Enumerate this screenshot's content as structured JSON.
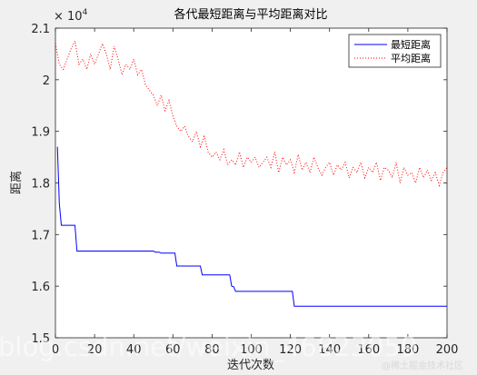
{
  "chart_data": {
    "type": "line",
    "title": "各代最短距离与平均距离对比",
    "xlabel": "迭代次数",
    "ylabel": "距离",
    "y_multiplier_label": "× 10",
    "y_multiplier_exp": "4",
    "xlim": [
      0,
      200
    ],
    "ylim": [
      15000,
      21000
    ],
    "xticks": [
      0,
      20,
      40,
      60,
      80,
      100,
      120,
      140,
      160,
      180,
      200
    ],
    "xtick_labels": [
      "0",
      "20",
      "40",
      "60",
      "80",
      "100",
      "120",
      "140",
      "160",
      "180",
      "200"
    ],
    "yticks": [
      15000,
      16000,
      17000,
      18000,
      19000,
      20000,
      21000
    ],
    "ytick_labels": [
      "1.5",
      "1.6",
      "1.7",
      "1.8",
      "1.9",
      "2",
      "2.1"
    ],
    "grid": false,
    "legend_position": "top-right",
    "series": [
      {
        "name": "最短距离",
        "color": "#0000ff",
        "style": "solid",
        "x": [
          1,
          2,
          3,
          4,
          10,
          11,
          50,
          51,
          53,
          54,
          61,
          62,
          63,
          74,
          75,
          89,
          90,
          91,
          92,
          121,
          122,
          200
        ],
        "y": [
          18700,
          17600,
          17180,
          17180,
          17180,
          16680,
          16680,
          16660,
          16660,
          16640,
          16640,
          16390,
          16390,
          16390,
          16220,
          16220,
          16000,
          15990,
          15900,
          15900,
          15610,
          15610
        ]
      },
      {
        "name": "平均距离",
        "color": "#ff0000",
        "style": "dotted",
        "x": [
          0,
          2,
          4,
          6,
          8,
          10,
          12,
          14,
          16,
          18,
          20,
          22,
          24,
          26,
          28,
          30,
          32,
          34,
          36,
          38,
          40,
          42,
          44,
          46,
          48,
          50,
          52,
          54,
          56,
          58,
          60,
          62,
          64,
          66,
          68,
          70,
          72,
          74,
          76,
          78,
          80,
          82,
          84,
          86,
          88,
          90,
          92,
          94,
          96,
          98,
          100,
          102,
          104,
          106,
          108,
          110,
          112,
          114,
          116,
          118,
          120,
          122,
          124,
          126,
          128,
          130,
          132,
          134,
          136,
          138,
          140,
          142,
          144,
          146,
          148,
          150,
          152,
          154,
          156,
          158,
          160,
          162,
          164,
          166,
          168,
          170,
          172,
          174,
          176,
          178,
          180,
          182,
          184,
          186,
          188,
          190,
          192,
          194,
          196,
          198,
          200
        ],
        "y": [
          20700,
          20300,
          20200,
          20400,
          20600,
          20750,
          20300,
          20400,
          20200,
          20500,
          20300,
          20500,
          20700,
          20500,
          20200,
          20650,
          20400,
          20100,
          20300,
          20200,
          20400,
          20100,
          20200,
          19900,
          19800,
          19700,
          19500,
          19700,
          19400,
          19600,
          19300,
          19100,
          19000,
          19100,
          18900,
          18800,
          19000,
          18700,
          18900,
          18600,
          18500,
          18600,
          18450,
          18650,
          18350,
          18450,
          18350,
          18600,
          18300,
          18500,
          18400,
          18500,
          18300,
          18400,
          18500,
          18300,
          18600,
          18200,
          18500,
          18350,
          18450,
          18200,
          18550,
          18250,
          18400,
          18200,
          18500,
          18300,
          18150,
          18300,
          18400,
          18150,
          18350,
          18250,
          18400,
          18100,
          18300,
          18200,
          18400,
          18100,
          18300,
          18200,
          18400,
          18050,
          18300,
          18250,
          18100,
          18400,
          18000,
          18300,
          18150,
          18200,
          18000,
          18300,
          18100,
          18250,
          18050,
          18200,
          17950,
          18200,
          18300
        ]
      }
    ]
  },
  "watermark": {
    "main_text": "blog.csdn.net/weixin_46823059",
    "credit_text": "@稀土掘金技术社区"
  }
}
